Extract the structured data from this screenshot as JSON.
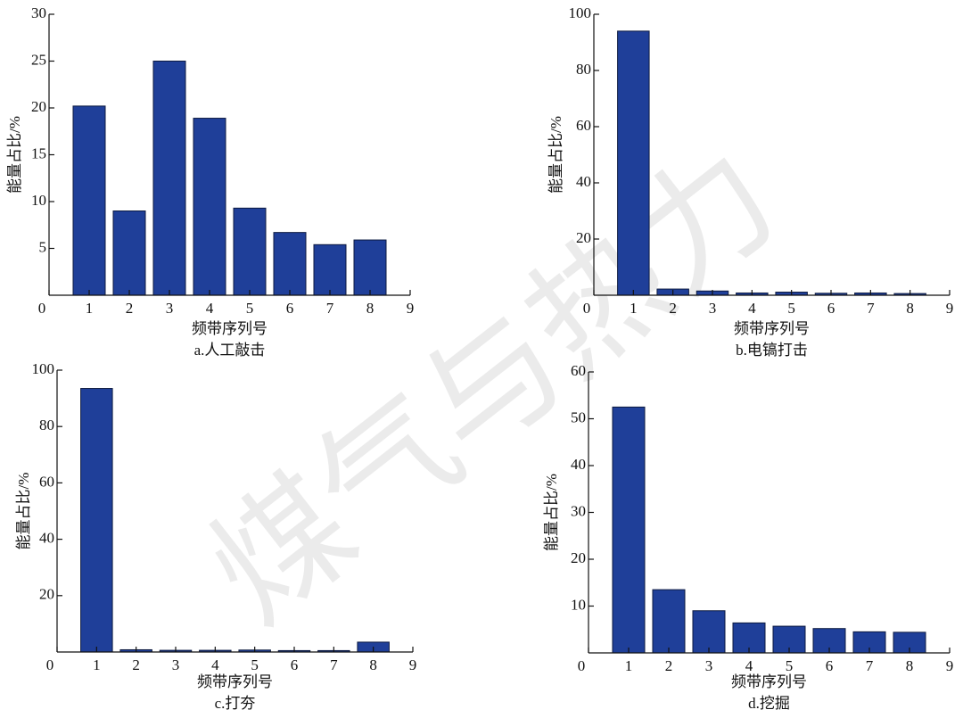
{
  "watermark": "煤气与热力",
  "chart_data": [
    {
      "type": "bar",
      "caption": "a.人工敲击",
      "xlabel": "频带序列号",
      "ylabel": "能量占比/%",
      "color": "#1f3f99",
      "x": [
        1,
        2,
        3,
        4,
        5,
        6,
        7,
        8
      ],
      "values": [
        20.2,
        9,
        25,
        18.9,
        9.3,
        6.7,
        5.4,
        5.9
      ],
      "xlim": [
        0,
        9
      ],
      "xticks": [
        0,
        1,
        2,
        3,
        4,
        5,
        6,
        7,
        8,
        9
      ],
      "ylim": [
        0,
        30
      ],
      "yticks": [
        5,
        10,
        15,
        20,
        25,
        30
      ]
    },
    {
      "type": "bar",
      "caption": "b.电镐打击",
      "xlabel": "频带序列号",
      "ylabel": "能量占比/%",
      "color": "#1f3f99",
      "x": [
        1,
        2,
        3,
        4,
        5,
        6,
        7,
        8
      ],
      "values": [
        94,
        2.2,
        1.5,
        0.8,
        1.1,
        0.7,
        0.8,
        0.6
      ],
      "xlim": [
        0,
        9
      ],
      "xticks": [
        0,
        1,
        2,
        3,
        4,
        5,
        6,
        7,
        8,
        9
      ],
      "ylim": [
        0,
        100
      ],
      "yticks": [
        20,
        40,
        60,
        80,
        100
      ]
    },
    {
      "type": "bar",
      "caption": "c.打夯",
      "xlabel": "频带序列号",
      "ylabel": "能量占比/%",
      "color": "#1f3f99",
      "x": [
        1,
        2,
        3,
        4,
        5,
        6,
        7,
        8
      ],
      "values": [
        93.5,
        0.8,
        0.6,
        0.6,
        0.7,
        0.5,
        0.5,
        3.5
      ],
      "xlim": [
        0,
        9
      ],
      "xticks": [
        0,
        1,
        2,
        3,
        4,
        5,
        6,
        7,
        8,
        9
      ],
      "ylim": [
        0,
        100
      ],
      "yticks": [
        20,
        40,
        60,
        80,
        100
      ]
    },
    {
      "type": "bar",
      "caption": "d.挖掘",
      "xlabel": "频带序列号",
      "ylabel": "能量占比/%",
      "color": "#1f3f99",
      "x": [
        1,
        2,
        3,
        4,
        5,
        6,
        7,
        8
      ],
      "values": [
        52.5,
        13.5,
        9,
        6.4,
        5.7,
        5.2,
        4.5,
        4.4
      ],
      "xlim": [
        0,
        9
      ],
      "xticks": [
        0,
        1,
        2,
        3,
        4,
        5,
        6,
        7,
        8,
        9
      ],
      "ylim": [
        0,
        60
      ],
      "yticks": [
        10,
        20,
        30,
        40,
        50,
        60
      ]
    }
  ]
}
